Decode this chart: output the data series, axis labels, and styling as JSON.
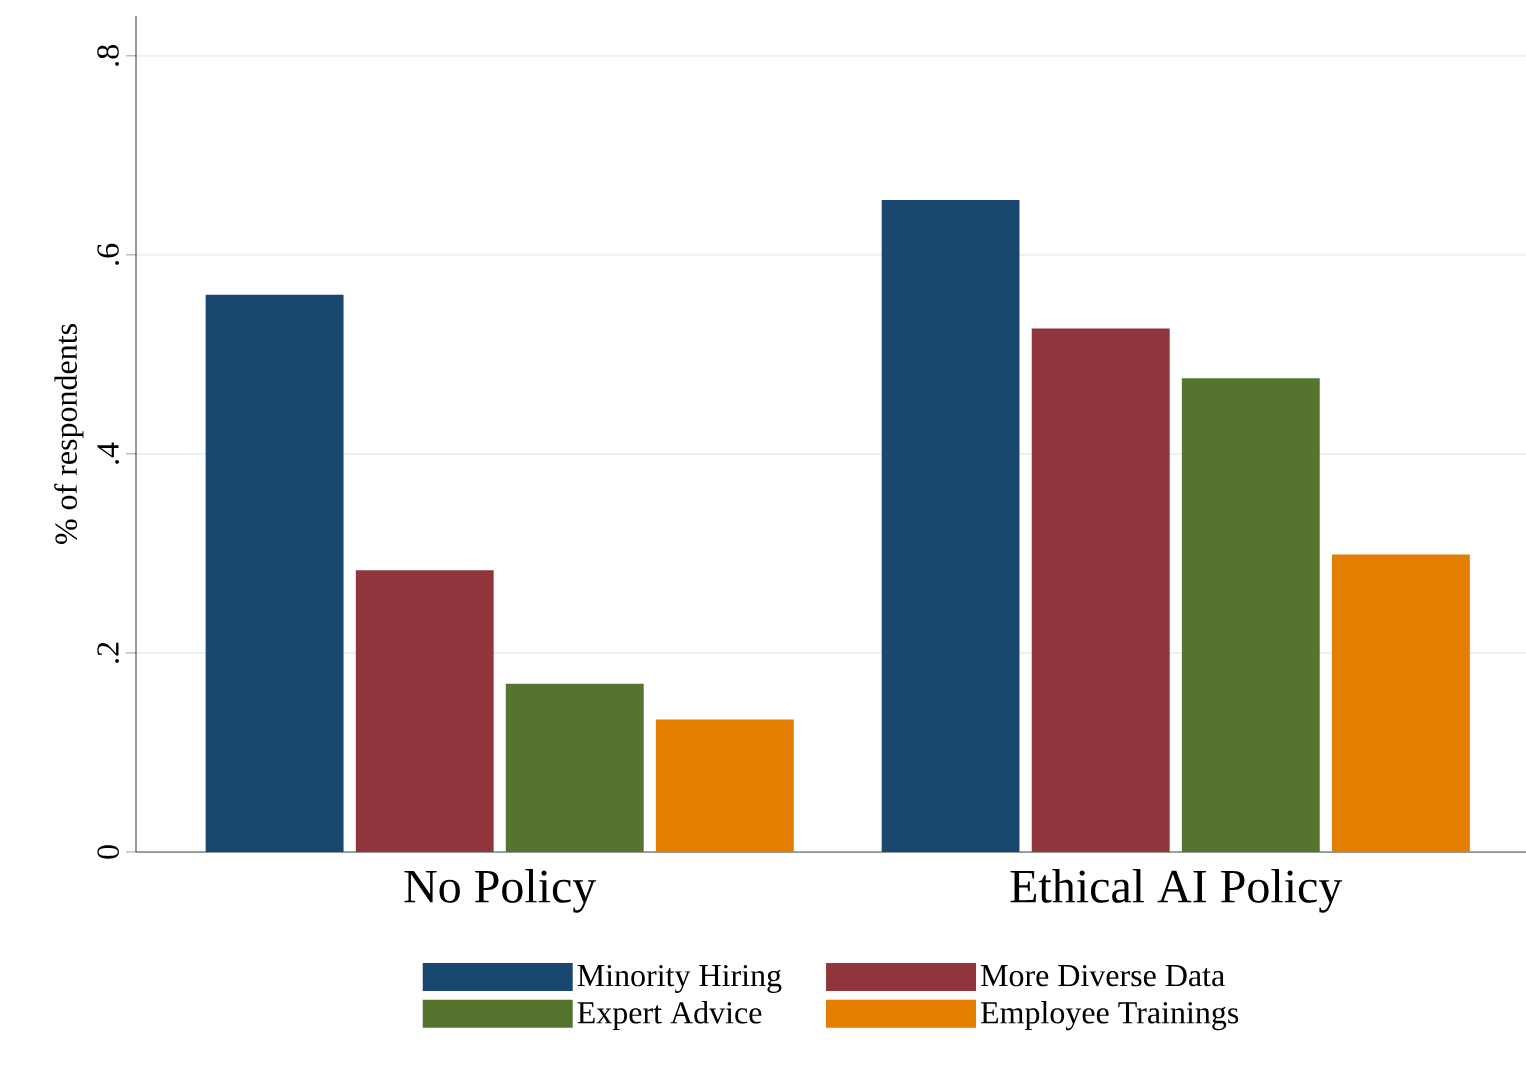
{
  "chart_data": {
    "type": "bar",
    "ylabel": "% of respondents",
    "categories": [
      "No Policy",
      "Ethical AI Policy"
    ],
    "series": [
      {
        "name": "Minority Hiring",
        "color": "#1a476f",
        "values": [
          0.56,
          0.655
        ]
      },
      {
        "name": "More Diverse Data",
        "color": "#90353b",
        "values": [
          0.283,
          0.526
        ]
      },
      {
        "name": "Expert Advice",
        "color": "#55752f",
        "values": [
          0.169,
          0.476
        ]
      },
      {
        "name": "Employee Trainings",
        "color": "#e37e00",
        "values": [
          0.133,
          0.299
        ]
      }
    ],
    "ylim": [
      0,
      0.84
    ],
    "yticks": [
      {
        "value": 0,
        "label": "0"
      },
      {
        "value": 0.2,
        "label": ".2"
      },
      {
        "value": 0.4,
        "label": ".4"
      },
      {
        "value": 0.6,
        "label": ".6"
      },
      {
        "value": 0.8,
        "label": ".8"
      }
    ],
    "grid": "y",
    "legend": "bottom"
  }
}
